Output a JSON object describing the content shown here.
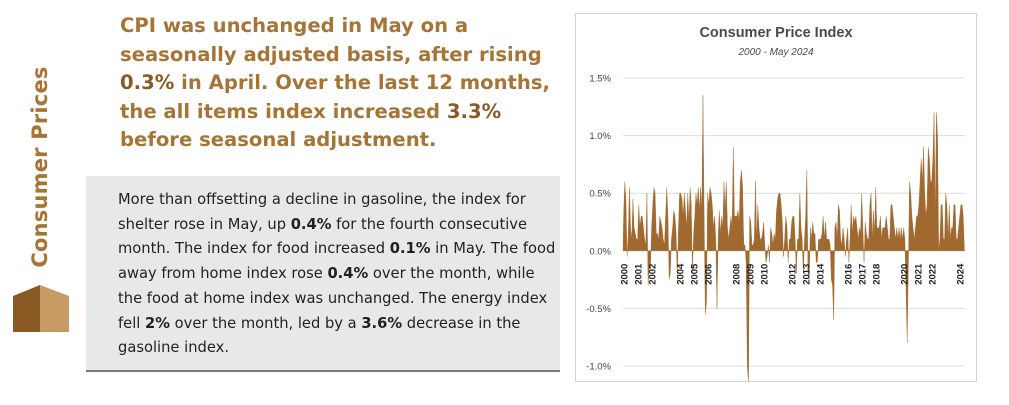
{
  "sidebar": {
    "title": "Consumer Prices",
    "colors": {
      "brand": "#a67435",
      "logo_dark": "#8b5a24",
      "logo_light": "#c79a64"
    }
  },
  "headline": {
    "parts": [
      {
        "text": "CPI was unchanged in May on a seasonally adjusted basis, after rising ",
        "bold": false
      },
      {
        "text": "0.3%",
        "bold": true
      },
      {
        "text": " in April. Over the last 12 months, the all items index increased ",
        "bold": false
      },
      {
        "text": "3.3%",
        "bold": true
      },
      {
        "text": " before seasonal adjustment.",
        "bold": false
      }
    ],
    "color": "#a67435",
    "highlight_color": "#8b5a24"
  },
  "body": {
    "parts": [
      {
        "text": "More than offsetting a decline in gasoline, the index for shelter rose in May, up ",
        "bold": false
      },
      {
        "text": "0.4%",
        "bold": true
      },
      {
        "text": " for the fourth consecutive month. The index for food increased ",
        "bold": false
      },
      {
        "text": "0.1%",
        "bold": true
      },
      {
        "text": " in May. The food away from home index rose ",
        "bold": false
      },
      {
        "text": "0.4%",
        "bold": true
      },
      {
        "text": " over the month, while the food at home index was unchanged. The energy index fell ",
        "bold": false
      },
      {
        "text": "2%",
        "bold": true
      },
      {
        "text": " over the month, led by a ",
        "bold": false
      },
      {
        "text": "3.6%",
        "bold": true
      },
      {
        "text": " decrease in the gasoline index.",
        "bold": false
      }
    ]
  },
  "chart_data": {
    "type": "area",
    "title": "Consumer Price Index",
    "subtitle": "2000 - May 2024",
    "xlabel": "",
    "ylabel": "",
    "ylim": [
      -1.0,
      1.5
    ],
    "yticks": [
      1.5,
      1.0,
      0.5,
      0.0,
      -0.5,
      -1.0
    ],
    "ytick_labels": [
      "1.5%",
      "1.0%",
      "0.5%",
      "0.0%",
      "-0.5%",
      "-1.0%"
    ],
    "xticks": [
      2000,
      2001,
      2002,
      2004,
      2005,
      2006,
      2008,
      2009,
      2010,
      2012,
      2013,
      2014,
      2016,
      2017,
      2018,
      2020,
      2021,
      2022,
      2024
    ],
    "xtick_labels": [
      "2000",
      "2001",
      "2002",
      "2004",
      "2005",
      "2006",
      "2008",
      "2009",
      "2010",
      "2012",
      "2013",
      "2014",
      "2016",
      "2017",
      "2018",
      "2020",
      "2021",
      "2022",
      "2024"
    ],
    "grid": "horizontal",
    "legend": "none",
    "color": "#a0692f",
    "x_start": 2000,
    "x_end": 2024.42,
    "series": [
      {
        "values": [
          0.3,
          0.6,
          0.45,
          -0.05,
          0.15,
          0.55,
          0.2,
          0.1,
          0.45,
          0.2,
          0.15,
          0.1,
          0.1,
          0.4,
          0.2,
          0.3,
          0.3,
          0.2,
          0.1,
          0.05,
          0.5,
          -0.3,
          -0.15,
          -0.15,
          0.2,
          0.4,
          0.55,
          0.5,
          0.15,
          0.15,
          0.1,
          0.3,
          0.25,
          0.2,
          0.1,
          0.05,
          0.3,
          0.55,
          0.3,
          -0.25,
          -0.2,
          0.1,
          0.2,
          0.35,
          0.3,
          0.15,
          -0.25,
          0.2,
          0.5,
          0.5,
          0.45,
          0.3,
          0.5,
          0.35,
          0.2,
          0.5,
          0.25,
          0.55,
          0.4,
          -0.2,
          0.15,
          0.3,
          0.5,
          0.4,
          0.55,
          0.35,
          0.55,
          0.35,
          1.35,
          0.3,
          -0.55,
          -0.45,
          0.5,
          0.4,
          0.55,
          0.5,
          0.4,
          0.2,
          0.3,
          0.1,
          -0.5,
          0.1,
          0.35,
          0.15,
          0.3,
          0.2,
          0.6,
          0.35,
          0.6,
          0.2,
          0.1,
          0.2,
          0.3,
          0.2,
          0.9,
          0.3,
          0.3,
          0.3,
          0.35,
          0.25,
          0.6,
          0.7,
          0.55,
          0.05,
          0.05,
          -0.1,
          -1.0,
          -1.15,
          0.3,
          0.25,
          0.05,
          0.05,
          0.1,
          0.6,
          0.1,
          0.4,
          0.2,
          0.1,
          0.1,
          0.15,
          0.25,
          0.05,
          -0.1,
          -0.05,
          0.05,
          -0.1,
          0.2,
          0.15,
          0.05,
          0.15,
          0.1,
          0.35,
          0.45,
          0.5,
          0.5,
          0.4,
          0.25,
          -0.05,
          0.1,
          0.3,
          0.2,
          -0.1,
          0.1,
          0.1,
          0.25,
          0.3,
          0.3,
          0.1,
          -0.2,
          0.1,
          0.1,
          0.5,
          0.2,
          0.1,
          -0.2,
          0.1,
          0.3,
          0.7,
          -0.2,
          -0.25,
          0.2,
          0.1,
          0.25,
          0.15,
          0.15,
          -0.1,
          -0.1,
          0.1,
          0.1,
          0.1,
          0.15,
          0.3,
          0.1,
          0.25,
          0.1,
          0.1,
          0.1,
          0.05,
          -0.25,
          -0.3,
          -0.6,
          0.2,
          0.25,
          0.1,
          0.4,
          0.35,
          0.1,
          0.05,
          0.2,
          0.1,
          -0.05,
          0.1,
          0.2,
          -0.1,
          0.1,
          0.4,
          0.15,
          0.3,
          0.25,
          0.3,
          0.2,
          0.1,
          0.2,
          0.15,
          0.5,
          0.2,
          -0.1,
          0.25,
          0.15,
          0.1,
          0.1,
          0.4,
          0.5,
          0.1,
          0.35,
          0.15,
          0.55,
          0.2,
          0.2,
          0.2,
          0.3,
          0.1,
          0.2,
          0.2,
          0.2,
          0.3,
          0.2,
          0.1,
          0.1,
          0.4,
          0.4,
          0.3,
          0.2,
          0.1,
          0.2,
          0.1,
          0.2,
          0.1,
          0.2,
          0.1,
          0.2,
          0.1,
          -0.35,
          -0.8,
          -0.1,
          0.6,
          0.5,
          0.3,
          0.2,
          0.1,
          0.2,
          0.3,
          0.3,
          0.4,
          0.6,
          0.8,
          0.6,
          0.9,
          0.5,
          0.3,
          0.4,
          0.9,
          0.8,
          0.6,
          0.6,
          0.8,
          1.2,
          0.3,
          1.2,
          1.0,
          0.0,
          0.1,
          0.4,
          0.4,
          0.1,
          0.1,
          0.5,
          0.4,
          0.1,
          0.4,
          0.1,
          0.2,
          0.2,
          0.4,
          0.4,
          0.1,
          0.1,
          0.2,
          0.3,
          0.4,
          0.4,
          0.3,
          0.0
        ]
      }
    ]
  }
}
